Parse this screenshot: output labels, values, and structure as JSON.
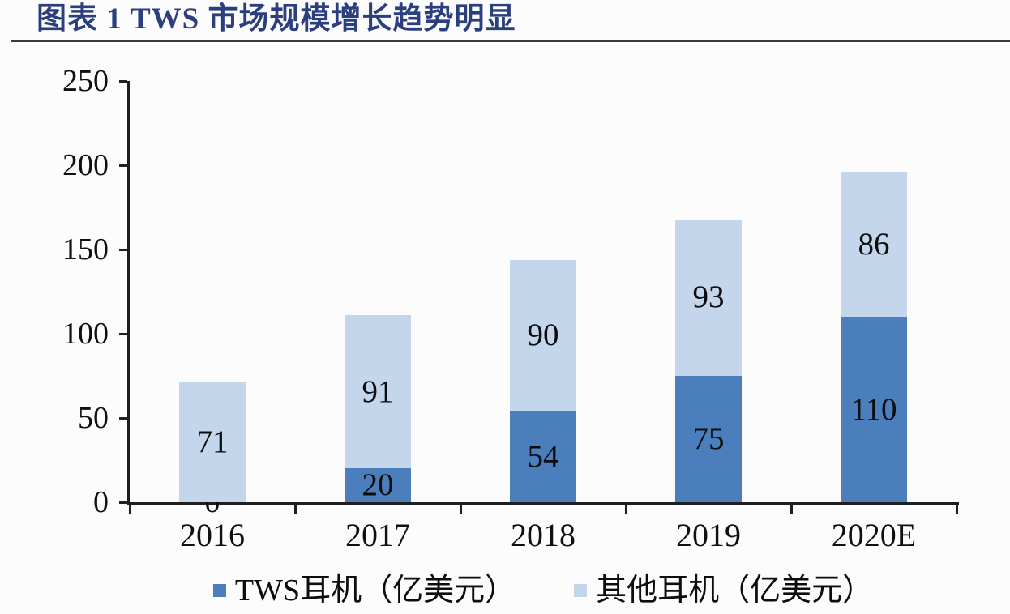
{
  "header": {
    "title": "图表 1 TWS 市场规模增长趋势明显"
  },
  "chart_data": {
    "type": "bar",
    "stacked": true,
    "title": "图表 1 TWS 市场规模增长趋势明显",
    "categories": [
      "2016",
      "2017",
      "2018",
      "2019",
      "2020E"
    ],
    "series": [
      {
        "name": "TWS耳机（亿美元）",
        "color": "#4a7ebd",
        "values": [
          0,
          20,
          54,
          75,
          110
        ]
      },
      {
        "name": "其他耳机（亿美元）",
        "color": "#c3d6eb",
        "values": [
          71,
          91,
          90,
          93,
          86
        ]
      }
    ],
    "ylim": [
      0,
      250
    ],
    "yticks": [
      0,
      50,
      100,
      150,
      200,
      250
    ],
    "xlabel": "",
    "ylabel": "",
    "grid": false,
    "legend_position": "bottom",
    "data_labels": true
  },
  "colors": {
    "title_text": "#2b3f7e",
    "underline": "#3a3a3a",
    "axis": "#1f1f1f",
    "label_text": "#0d0d0d",
    "background": "#fcfcfd"
  }
}
